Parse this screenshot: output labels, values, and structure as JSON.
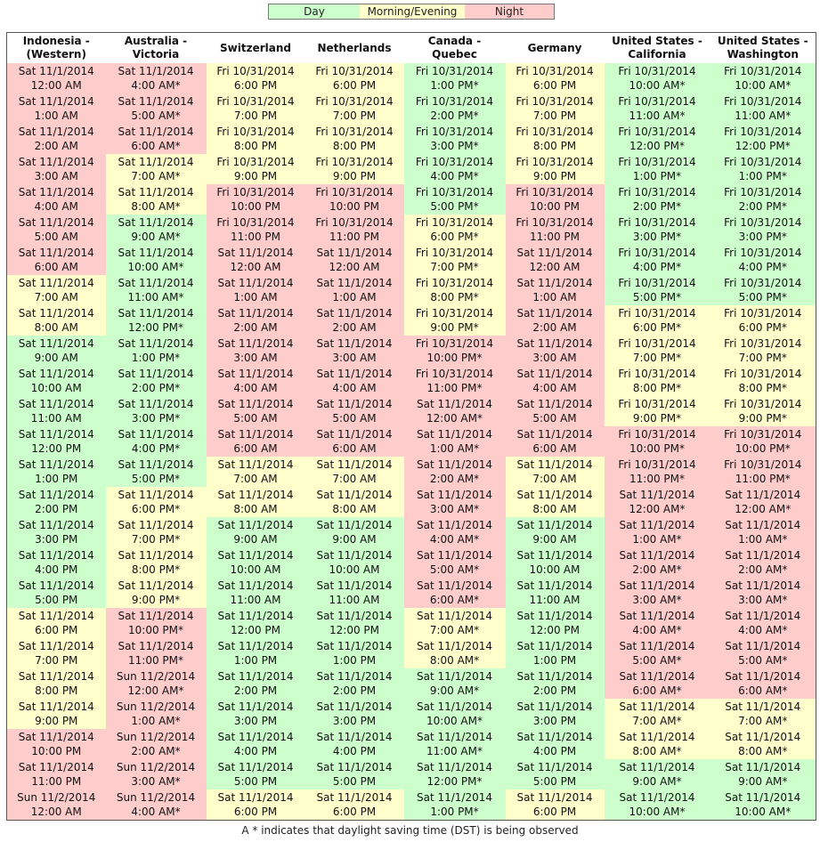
{
  "legend": [
    {
      "label": "Day",
      "cls": "c-day"
    },
    {
      "label": "Morning/Evening",
      "cls": "c-me"
    },
    {
      "label": "Night",
      "cls": "c-night"
    }
  ],
  "colors": {
    "day": "#ccffcc",
    "morning_evening": "#ffffcc",
    "night": "#ffcccc"
  },
  "columns": [
    "Indonesia - (Western)",
    "Australia - Victoria",
    "Switzerland",
    "Netherlands",
    "Canada - Quebec",
    "Germany",
    "United States - California",
    "United States - Washington"
  ],
  "rows": [
    [
      [
        "Sat 11/1/2014 12:00 AM",
        "n"
      ],
      [
        "Sat 11/1/2014 4:00 AM*",
        "n"
      ],
      [
        "Fri 10/31/2014 6:00 PM",
        "m"
      ],
      [
        "Fri 10/31/2014 6:00 PM",
        "m"
      ],
      [
        "Fri 10/31/2014 1:00 PM*",
        "d"
      ],
      [
        "Fri 10/31/2014 6:00 PM",
        "m"
      ],
      [
        "Fri 10/31/2014 10:00 AM*",
        "d"
      ],
      [
        "Fri 10/31/2014 10:00 AM*",
        "d"
      ]
    ],
    [
      [
        "Sat 11/1/2014 1:00 AM",
        "n"
      ],
      [
        "Sat 11/1/2014 5:00 AM*",
        "n"
      ],
      [
        "Fri 10/31/2014 7:00 PM",
        "m"
      ],
      [
        "Fri 10/31/2014 7:00 PM",
        "m"
      ],
      [
        "Fri 10/31/2014 2:00 PM*",
        "d"
      ],
      [
        "Fri 10/31/2014 7:00 PM",
        "m"
      ],
      [
        "Fri 10/31/2014 11:00 AM*",
        "d"
      ],
      [
        "Fri 10/31/2014 11:00 AM*",
        "d"
      ]
    ],
    [
      [
        "Sat 11/1/2014 2:00 AM",
        "n"
      ],
      [
        "Sat 11/1/2014 6:00 AM*",
        "n"
      ],
      [
        "Fri 10/31/2014 8:00 PM",
        "m"
      ],
      [
        "Fri 10/31/2014 8:00 PM",
        "m"
      ],
      [
        "Fri 10/31/2014 3:00 PM*",
        "d"
      ],
      [
        "Fri 10/31/2014 8:00 PM",
        "m"
      ],
      [
        "Fri 10/31/2014 12:00 PM*",
        "d"
      ],
      [
        "Fri 10/31/2014 12:00 PM*",
        "d"
      ]
    ],
    [
      [
        "Sat 11/1/2014 3:00 AM",
        "n"
      ],
      [
        "Sat 11/1/2014 7:00 AM*",
        "m"
      ],
      [
        "Fri 10/31/2014 9:00 PM",
        "m"
      ],
      [
        "Fri 10/31/2014 9:00 PM",
        "m"
      ],
      [
        "Fri 10/31/2014 4:00 PM*",
        "d"
      ],
      [
        "Fri 10/31/2014 9:00 PM",
        "m"
      ],
      [
        "Fri 10/31/2014 1:00 PM*",
        "d"
      ],
      [
        "Fri 10/31/2014 1:00 PM*",
        "d"
      ]
    ],
    [
      [
        "Sat 11/1/2014 4:00 AM",
        "n"
      ],
      [
        "Sat 11/1/2014 8:00 AM*",
        "m"
      ],
      [
        "Fri 10/31/2014 10:00 PM",
        "n"
      ],
      [
        "Fri 10/31/2014 10:00 PM",
        "n"
      ],
      [
        "Fri 10/31/2014 5:00 PM*",
        "d"
      ],
      [
        "Fri 10/31/2014 10:00 PM",
        "n"
      ],
      [
        "Fri 10/31/2014 2:00 PM*",
        "d"
      ],
      [
        "Fri 10/31/2014 2:00 PM*",
        "d"
      ]
    ],
    [
      [
        "Sat 11/1/2014 5:00 AM",
        "n"
      ],
      [
        "Sat 11/1/2014 9:00 AM*",
        "d"
      ],
      [
        "Fri 10/31/2014 11:00 PM",
        "n"
      ],
      [
        "Fri 10/31/2014 11:00 PM",
        "n"
      ],
      [
        "Fri 10/31/2014 6:00 PM*",
        "m"
      ],
      [
        "Fri 10/31/2014 11:00 PM",
        "n"
      ],
      [
        "Fri 10/31/2014 3:00 PM*",
        "d"
      ],
      [
        "Fri 10/31/2014 3:00 PM*",
        "d"
      ]
    ],
    [
      [
        "Sat 11/1/2014 6:00 AM",
        "n"
      ],
      [
        "Sat 11/1/2014 10:00 AM*",
        "d"
      ],
      [
        "Sat 11/1/2014 12:00 AM",
        "n"
      ],
      [
        "Sat 11/1/2014 12:00 AM",
        "n"
      ],
      [
        "Fri 10/31/2014 7:00 PM*",
        "m"
      ],
      [
        "Sat 11/1/2014 12:00 AM",
        "n"
      ],
      [
        "Fri 10/31/2014 4:00 PM*",
        "d"
      ],
      [
        "Fri 10/31/2014 4:00 PM*",
        "d"
      ]
    ],
    [
      [
        "Sat 11/1/2014 7:00 AM",
        "m"
      ],
      [
        "Sat 11/1/2014 11:00 AM*",
        "d"
      ],
      [
        "Sat 11/1/2014 1:00 AM",
        "n"
      ],
      [
        "Sat 11/1/2014 1:00 AM",
        "n"
      ],
      [
        "Fri 10/31/2014 8:00 PM*",
        "m"
      ],
      [
        "Sat 11/1/2014 1:00 AM",
        "n"
      ],
      [
        "Fri 10/31/2014 5:00 PM*",
        "d"
      ],
      [
        "Fri 10/31/2014 5:00 PM*",
        "d"
      ]
    ],
    [
      [
        "Sat 11/1/2014 8:00 AM",
        "m"
      ],
      [
        "Sat 11/1/2014 12:00 PM*",
        "d"
      ],
      [
        "Sat 11/1/2014 2:00 AM",
        "n"
      ],
      [
        "Sat 11/1/2014 2:00 AM",
        "n"
      ],
      [
        "Fri 10/31/2014 9:00 PM*",
        "m"
      ],
      [
        "Sat 11/1/2014 2:00 AM",
        "n"
      ],
      [
        "Fri 10/31/2014 6:00 PM*",
        "m"
      ],
      [
        "Fri 10/31/2014 6:00 PM*",
        "m"
      ]
    ],
    [
      [
        "Sat 11/1/2014 9:00 AM",
        "d"
      ],
      [
        "Sat 11/1/2014 1:00 PM*",
        "d"
      ],
      [
        "Sat 11/1/2014 3:00 AM",
        "n"
      ],
      [
        "Sat 11/1/2014 3:00 AM",
        "n"
      ],
      [
        "Fri 10/31/2014 10:00 PM*",
        "n"
      ],
      [
        "Sat 11/1/2014 3:00 AM",
        "n"
      ],
      [
        "Fri 10/31/2014 7:00 PM*",
        "m"
      ],
      [
        "Fri 10/31/2014 7:00 PM*",
        "m"
      ]
    ],
    [
      [
        "Sat 11/1/2014 10:00 AM",
        "d"
      ],
      [
        "Sat 11/1/2014 2:00 PM*",
        "d"
      ],
      [
        "Sat 11/1/2014 4:00 AM",
        "n"
      ],
      [
        "Sat 11/1/2014 4:00 AM",
        "n"
      ],
      [
        "Fri 10/31/2014 11:00 PM*",
        "n"
      ],
      [
        "Sat 11/1/2014 4:00 AM",
        "n"
      ],
      [
        "Fri 10/31/2014 8:00 PM*",
        "m"
      ],
      [
        "Fri 10/31/2014 8:00 PM*",
        "m"
      ]
    ],
    [
      [
        "Sat 11/1/2014 11:00 AM",
        "d"
      ],
      [
        "Sat 11/1/2014 3:00 PM*",
        "d"
      ],
      [
        "Sat 11/1/2014 5:00 AM",
        "n"
      ],
      [
        "Sat 11/1/2014 5:00 AM",
        "n"
      ],
      [
        "Sat 11/1/2014 12:00 AM*",
        "n"
      ],
      [
        "Sat 11/1/2014 5:00 AM",
        "n"
      ],
      [
        "Fri 10/31/2014 9:00 PM*",
        "m"
      ],
      [
        "Fri 10/31/2014 9:00 PM*",
        "m"
      ]
    ],
    [
      [
        "Sat 11/1/2014 12:00 PM",
        "d"
      ],
      [
        "Sat 11/1/2014 4:00 PM*",
        "d"
      ],
      [
        "Sat 11/1/2014 6:00 AM",
        "n"
      ],
      [
        "Sat 11/1/2014 6:00 AM",
        "n"
      ],
      [
        "Sat 11/1/2014 1:00 AM*",
        "n"
      ],
      [
        "Sat 11/1/2014 6:00 AM",
        "n"
      ],
      [
        "Fri 10/31/2014 10:00 PM*",
        "n"
      ],
      [
        "Fri 10/31/2014 10:00 PM*",
        "n"
      ]
    ],
    [
      [
        "Sat 11/1/2014 1:00 PM",
        "d"
      ],
      [
        "Sat 11/1/2014 5:00 PM*",
        "d"
      ],
      [
        "Sat 11/1/2014 7:00 AM",
        "m"
      ],
      [
        "Sat 11/1/2014 7:00 AM",
        "m"
      ],
      [
        "Sat 11/1/2014 2:00 AM*",
        "n"
      ],
      [
        "Sat 11/1/2014 7:00 AM",
        "m"
      ],
      [
        "Fri 10/31/2014 11:00 PM*",
        "n"
      ],
      [
        "Fri 10/31/2014 11:00 PM*",
        "n"
      ]
    ],
    [
      [
        "Sat 11/1/2014 2:00 PM",
        "d"
      ],
      [
        "Sat 11/1/2014 6:00 PM*",
        "m"
      ],
      [
        "Sat 11/1/2014 8:00 AM",
        "m"
      ],
      [
        "Sat 11/1/2014 8:00 AM",
        "m"
      ],
      [
        "Sat 11/1/2014 3:00 AM*",
        "n"
      ],
      [
        "Sat 11/1/2014 8:00 AM",
        "m"
      ],
      [
        "Sat 11/1/2014 12:00 AM*",
        "n"
      ],
      [
        "Sat 11/1/2014 12:00 AM*",
        "n"
      ]
    ],
    [
      [
        "Sat 11/1/2014 3:00 PM",
        "d"
      ],
      [
        "Sat 11/1/2014 7:00 PM*",
        "m"
      ],
      [
        "Sat 11/1/2014 9:00 AM",
        "d"
      ],
      [
        "Sat 11/1/2014 9:00 AM",
        "d"
      ],
      [
        "Sat 11/1/2014 4:00 AM*",
        "n"
      ],
      [
        "Sat 11/1/2014 9:00 AM",
        "d"
      ],
      [
        "Sat 11/1/2014 1:00 AM*",
        "n"
      ],
      [
        "Sat 11/1/2014 1:00 AM*",
        "n"
      ]
    ],
    [
      [
        "Sat 11/1/2014 4:00 PM",
        "d"
      ],
      [
        "Sat 11/1/2014 8:00 PM*",
        "m"
      ],
      [
        "Sat 11/1/2014 10:00 AM",
        "d"
      ],
      [
        "Sat 11/1/2014 10:00 AM",
        "d"
      ],
      [
        "Sat 11/1/2014 5:00 AM*",
        "n"
      ],
      [
        "Sat 11/1/2014 10:00 AM",
        "d"
      ],
      [
        "Sat 11/1/2014 2:00 AM*",
        "n"
      ],
      [
        "Sat 11/1/2014 2:00 AM*",
        "n"
      ]
    ],
    [
      [
        "Sat 11/1/2014 5:00 PM",
        "d"
      ],
      [
        "Sat 11/1/2014 9:00 PM*",
        "m"
      ],
      [
        "Sat 11/1/2014 11:00 AM",
        "d"
      ],
      [
        "Sat 11/1/2014 11:00 AM",
        "d"
      ],
      [
        "Sat 11/1/2014 6:00 AM*",
        "n"
      ],
      [
        "Sat 11/1/2014 11:00 AM",
        "d"
      ],
      [
        "Sat 11/1/2014 3:00 AM*",
        "n"
      ],
      [
        "Sat 11/1/2014 3:00 AM*",
        "n"
      ]
    ],
    [
      [
        "Sat 11/1/2014 6:00 PM",
        "m"
      ],
      [
        "Sat 11/1/2014 10:00 PM*",
        "n"
      ],
      [
        "Sat 11/1/2014 12:00 PM",
        "d"
      ],
      [
        "Sat 11/1/2014 12:00 PM",
        "d"
      ],
      [
        "Sat 11/1/2014 7:00 AM*",
        "m"
      ],
      [
        "Sat 11/1/2014 12:00 PM",
        "d"
      ],
      [
        "Sat 11/1/2014 4:00 AM*",
        "n"
      ],
      [
        "Sat 11/1/2014 4:00 AM*",
        "n"
      ]
    ],
    [
      [
        "Sat 11/1/2014 7:00 PM",
        "m"
      ],
      [
        "Sat 11/1/2014 11:00 PM*",
        "n"
      ],
      [
        "Sat 11/1/2014 1:00 PM",
        "d"
      ],
      [
        "Sat 11/1/2014 1:00 PM",
        "d"
      ],
      [
        "Sat 11/1/2014 8:00 AM*",
        "m"
      ],
      [
        "Sat 11/1/2014 1:00 PM",
        "d"
      ],
      [
        "Sat 11/1/2014 5:00 AM*",
        "n"
      ],
      [
        "Sat 11/1/2014 5:00 AM*",
        "n"
      ]
    ],
    [
      [
        "Sat 11/1/2014 8:00 PM",
        "m"
      ],
      [
        "Sun 11/2/2014 12:00 AM*",
        "n"
      ],
      [
        "Sat 11/1/2014 2:00 PM",
        "d"
      ],
      [
        "Sat 11/1/2014 2:00 PM",
        "d"
      ],
      [
        "Sat 11/1/2014 9:00 AM*",
        "d"
      ],
      [
        "Sat 11/1/2014 2:00 PM",
        "d"
      ],
      [
        "Sat 11/1/2014 6:00 AM*",
        "n"
      ],
      [
        "Sat 11/1/2014 6:00 AM*",
        "n"
      ]
    ],
    [
      [
        "Sat 11/1/2014 9:00 PM",
        "m"
      ],
      [
        "Sun 11/2/2014 1:00 AM*",
        "n"
      ],
      [
        "Sat 11/1/2014 3:00 PM",
        "d"
      ],
      [
        "Sat 11/1/2014 3:00 PM",
        "d"
      ],
      [
        "Sat 11/1/2014 10:00 AM*",
        "d"
      ],
      [
        "Sat 11/1/2014 3:00 PM",
        "d"
      ],
      [
        "Sat 11/1/2014 7:00 AM*",
        "m"
      ],
      [
        "Sat 11/1/2014 7:00 AM*",
        "m"
      ]
    ],
    [
      [
        "Sat 11/1/2014 10:00 PM",
        "n"
      ],
      [
        "Sun 11/2/2014 2:00 AM*",
        "n"
      ],
      [
        "Sat 11/1/2014 4:00 PM",
        "d"
      ],
      [
        "Sat 11/1/2014 4:00 PM",
        "d"
      ],
      [
        "Sat 11/1/2014 11:00 AM*",
        "d"
      ],
      [
        "Sat 11/1/2014 4:00 PM",
        "d"
      ],
      [
        "Sat 11/1/2014 8:00 AM*",
        "m"
      ],
      [
        "Sat 11/1/2014 8:00 AM*",
        "m"
      ]
    ],
    [
      [
        "Sat 11/1/2014 11:00 PM",
        "n"
      ],
      [
        "Sun 11/2/2014 3:00 AM*",
        "n"
      ],
      [
        "Sat 11/1/2014 5:00 PM",
        "d"
      ],
      [
        "Sat 11/1/2014 5:00 PM",
        "d"
      ],
      [
        "Sat 11/1/2014 12:00 PM*",
        "d"
      ],
      [
        "Sat 11/1/2014 5:00 PM",
        "d"
      ],
      [
        "Sat 11/1/2014 9:00 AM*",
        "d"
      ],
      [
        "Sat 11/1/2014 9:00 AM*",
        "d"
      ]
    ],
    [
      [
        "Sun 11/2/2014 12:00 AM",
        "n"
      ],
      [
        "Sun 11/2/2014 4:00 AM*",
        "n"
      ],
      [
        "Sat 11/1/2014 6:00 PM",
        "m"
      ],
      [
        "Sat 11/1/2014 6:00 PM",
        "m"
      ],
      [
        "Sat 11/1/2014 1:00 PM*",
        "d"
      ],
      [
        "Sat 11/1/2014 6:00 PM",
        "m"
      ],
      [
        "Sat 11/1/2014 10:00 AM*",
        "d"
      ],
      [
        "Sat 11/1/2014 10:00 AM*",
        "d"
      ]
    ]
  ],
  "footnote": "A * indicates that daylight saving time (DST) is being observed"
}
